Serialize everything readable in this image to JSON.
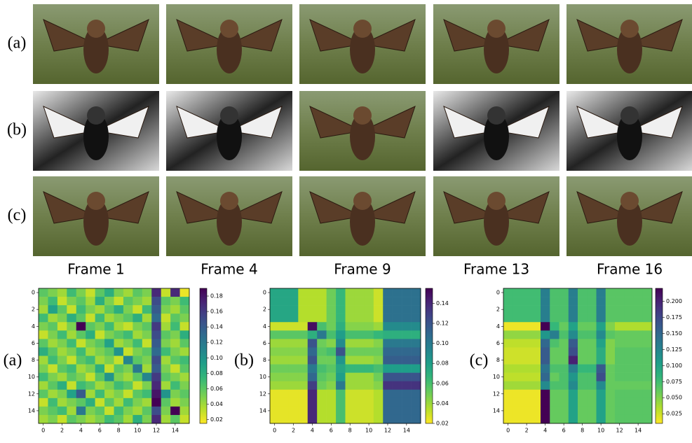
{
  "image_grid": {
    "row_labels": [
      "(a)",
      "(b)",
      "(c)"
    ],
    "frame_labels": [
      "Frame 1",
      "Frame 4",
      "Frame 9",
      "Frame 13",
      "Frame 16"
    ]
  },
  "chart_data": [
    {
      "type": "heatmap",
      "label": "(a)",
      "colormap": "viridis_r",
      "xlim": [
        -0.5,
        15.5
      ],
      "ylim": [
        15.5,
        -0.5
      ],
      "xticks": [
        0,
        2,
        4,
        6,
        8,
        10,
        12,
        14
      ],
      "yticks": [
        0,
        2,
        4,
        6,
        8,
        10,
        12,
        14
      ],
      "clim": [
        0.015,
        0.19
      ],
      "cticks": [
        0.02,
        0.04,
        0.06,
        0.08,
        {
          "value": 0.1,
          "label": "0.10"
        },
        0.12,
        0.14,
        0.16,
        0.18
      ],
      "values": [
        [
          0.06,
          0.05,
          0.04,
          0.07,
          0.05,
          0.03,
          0.06,
          0.08,
          0.05,
          0.04,
          0.06,
          0.05,
          0.17,
          0.03,
          0.17,
          0.02
        ],
        [
          0.05,
          0.07,
          0.03,
          0.05,
          0.06,
          0.04,
          0.08,
          0.05,
          0.03,
          0.06,
          0.05,
          0.04,
          0.15,
          0.06,
          0.05,
          0.07
        ],
        [
          0.04,
          0.09,
          0.06,
          0.03,
          0.07,
          0.05,
          0.04,
          0.06,
          0.08,
          0.05,
          0.03,
          0.07,
          0.14,
          0.05,
          0.04,
          0.06
        ],
        [
          0.07,
          0.04,
          0.05,
          0.08,
          0.06,
          0.03,
          0.07,
          0.04,
          0.05,
          0.06,
          0.08,
          0.04,
          0.13,
          0.03,
          0.06,
          0.05
        ],
        [
          0.05,
          0.06,
          0.03,
          0.05,
          0.19,
          0.06,
          0.05,
          0.07,
          0.04,
          0.03,
          0.05,
          0.06,
          0.16,
          0.04,
          0.07,
          0.03
        ],
        [
          0.03,
          0.05,
          0.07,
          0.04,
          0.06,
          0.08,
          0.03,
          0.05,
          0.06,
          0.07,
          0.04,
          0.05,
          0.15,
          0.06,
          0.05,
          0.08
        ],
        [
          0.06,
          0.04,
          0.05,
          0.07,
          0.03,
          0.05,
          0.06,
          0.09,
          0.04,
          0.05,
          0.07,
          0.03,
          0.14,
          0.05,
          0.04,
          0.06
        ],
        [
          0.08,
          0.06,
          0.04,
          0.05,
          0.07,
          0.04,
          0.05,
          0.06,
          0.1,
          0.03,
          0.05,
          0.06,
          0.13,
          0.07,
          0.05,
          0.04
        ],
        [
          0.04,
          0.07,
          0.05,
          0.03,
          0.06,
          0.07,
          0.04,
          0.05,
          0.03,
          0.11,
          0.06,
          0.05,
          0.15,
          0.04,
          0.06,
          0.07
        ],
        [
          0.05,
          0.03,
          0.06,
          0.07,
          0.04,
          0.05,
          0.08,
          0.03,
          0.06,
          0.05,
          0.12,
          0.04,
          0.14,
          0.05,
          0.03,
          0.06
        ],
        [
          0.07,
          0.05,
          0.04,
          0.06,
          0.05,
          0.03,
          0.06,
          0.1,
          0.05,
          0.04,
          0.06,
          0.11,
          0.16,
          0.06,
          0.05,
          0.04
        ],
        [
          0.04,
          0.06,
          0.08,
          0.03,
          0.07,
          0.06,
          0.04,
          0.05,
          0.07,
          0.06,
          0.03,
          0.05,
          0.17,
          0.04,
          0.07,
          0.05
        ],
        [
          0.06,
          0.04,
          0.05,
          0.09,
          0.14,
          0.04,
          0.07,
          0.04,
          0.05,
          0.03,
          0.06,
          0.07,
          0.18,
          0.1,
          0.05,
          0.06
        ],
        [
          0.03,
          0.07,
          0.04,
          0.05,
          0.06,
          0.08,
          0.03,
          0.06,
          0.04,
          0.07,
          0.05,
          0.04,
          0.19,
          0.06,
          0.04,
          0.05
        ],
        [
          0.05,
          0.06,
          0.07,
          0.04,
          0.12,
          0.05,
          0.06,
          0.03,
          0.07,
          0.05,
          0.04,
          0.06,
          0.15,
          0.05,
          0.19,
          0.04
        ],
        [
          0.04,
          0.05,
          0.03,
          0.06,
          0.05,
          0.04,
          0.05,
          0.07,
          0.06,
          0.04,
          0.08,
          0.05,
          0.17,
          0.04,
          0.06,
          0.03
        ]
      ]
    },
    {
      "type": "heatmap",
      "label": "(b)",
      "colormap": "viridis_r",
      "xlim": [
        -0.5,
        15.5
      ],
      "ylim": [
        15.5,
        -0.5
      ],
      "xticks": [
        0,
        2,
        4,
        6,
        8,
        10,
        12,
        14
      ],
      "yticks": [
        0,
        2,
        4,
        6,
        8,
        10,
        12,
        14
      ],
      "clim": [
        0.02,
        0.155
      ],
      "cticks": [
        0.02,
        0.04,
        0.06,
        0.08,
        {
          "value": 0.1,
          "label": "0.10"
        },
        0.12,
        0.14
      ],
      "values": [
        [
          0.075,
          0.075,
          0.075,
          0.035,
          0.035,
          0.035,
          0.05,
          0.065,
          0.04,
          0.04,
          0.04,
          0.03,
          0.105,
          0.105,
          0.105,
          0.105
        ],
        [
          0.075,
          0.075,
          0.075,
          0.035,
          0.035,
          0.035,
          0.05,
          0.065,
          0.04,
          0.04,
          0.04,
          0.03,
          0.105,
          0.105,
          0.105,
          0.105
        ],
        [
          0.075,
          0.075,
          0.075,
          0.035,
          0.035,
          0.035,
          0.05,
          0.065,
          0.04,
          0.04,
          0.04,
          0.03,
          0.105,
          0.105,
          0.105,
          0.105
        ],
        [
          0.075,
          0.075,
          0.075,
          0.035,
          0.035,
          0.035,
          0.05,
          0.065,
          0.04,
          0.04,
          0.04,
          0.03,
          0.105,
          0.105,
          0.105,
          0.105
        ],
        [
          0.03,
          0.03,
          0.03,
          0.03,
          0.15,
          0.06,
          0.05,
          0.07,
          0.045,
          0.045,
          0.045,
          0.04,
          0.09,
          0.09,
          0.09,
          0.09
        ],
        [
          0.055,
          0.055,
          0.055,
          0.055,
          0.07,
          0.1,
          0.06,
          0.08,
          0.06,
          0.06,
          0.06,
          0.065,
          0.07,
          0.07,
          0.07,
          0.07
        ],
        [
          0.04,
          0.04,
          0.04,
          0.04,
          0.12,
          0.05,
          0.045,
          0.09,
          0.04,
          0.04,
          0.04,
          0.045,
          0.1,
          0.1,
          0.1,
          0.1
        ],
        [
          0.045,
          0.045,
          0.045,
          0.045,
          0.11,
          0.055,
          0.06,
          0.12,
          0.05,
          0.05,
          0.05,
          0.05,
          0.11,
          0.11,
          0.11,
          0.11
        ],
        [
          0.04,
          0.04,
          0.04,
          0.04,
          0.12,
          0.05,
          0.05,
          0.085,
          0.04,
          0.04,
          0.04,
          0.045,
          0.115,
          0.115,
          0.115,
          0.115
        ],
        [
          0.05,
          0.05,
          0.05,
          0.05,
          0.1,
          0.06,
          0.055,
          0.075,
          0.065,
          0.065,
          0.065,
          0.06,
          0.08,
          0.08,
          0.08,
          0.08
        ],
        [
          0.045,
          0.045,
          0.045,
          0.045,
          0.11,
          0.055,
          0.05,
          0.08,
          0.04,
          0.04,
          0.04,
          0.05,
          0.12,
          0.12,
          0.12,
          0.12
        ],
        [
          0.04,
          0.04,
          0.04,
          0.04,
          0.13,
          0.05,
          0.045,
          0.1,
          0.04,
          0.04,
          0.04,
          0.045,
          0.135,
          0.135,
          0.135,
          0.135
        ],
        [
          0.025,
          0.025,
          0.025,
          0.025,
          0.14,
          0.035,
          0.035,
          0.06,
          0.03,
          0.03,
          0.03,
          0.035,
          0.11,
          0.11,
          0.11,
          0.11
        ],
        [
          0.025,
          0.025,
          0.025,
          0.025,
          0.14,
          0.035,
          0.035,
          0.06,
          0.03,
          0.03,
          0.03,
          0.035,
          0.11,
          0.11,
          0.11,
          0.11
        ],
        [
          0.025,
          0.025,
          0.025,
          0.025,
          0.14,
          0.035,
          0.035,
          0.06,
          0.03,
          0.03,
          0.03,
          0.035,
          0.11,
          0.11,
          0.11,
          0.11
        ],
        [
          0.025,
          0.025,
          0.025,
          0.025,
          0.14,
          0.035,
          0.035,
          0.06,
          0.03,
          0.03,
          0.03,
          0.035,
          0.11,
          0.11,
          0.11,
          0.11
        ]
      ]
    },
    {
      "type": "heatmap",
      "label": "(c)",
      "colormap": "viridis_r",
      "xlim": [
        -0.5,
        15.5
      ],
      "ylim": [
        15.5,
        -0.5
      ],
      "xticks": [
        0,
        2,
        4,
        6,
        8,
        10,
        12,
        14
      ],
      "yticks": [
        0,
        2,
        4,
        6,
        8,
        10,
        12,
        14
      ],
      "clim": [
        0.01,
        0.22
      ],
      "cticks": [
        0.025,
        {
          "value": 0.05,
          "label": "0.050"
        },
        0.075,
        {
          "value": 0.1,
          "label": "0.100"
        },
        0.125,
        {
          "value": 0.15,
          "label": "0.150"
        },
        0.175,
        {
          "value": 0.2,
          "label": "0.200"
        }
      ],
      "values": [
        [
          0.075,
          0.075,
          0.075,
          0.075,
          0.13,
          0.07,
          0.07,
          0.13,
          0.07,
          0.07,
          0.13,
          0.065,
          0.065,
          0.065,
          0.065,
          0.065
        ],
        [
          0.075,
          0.075,
          0.075,
          0.075,
          0.13,
          0.07,
          0.07,
          0.13,
          0.07,
          0.07,
          0.13,
          0.065,
          0.065,
          0.065,
          0.065,
          0.065
        ],
        [
          0.075,
          0.075,
          0.075,
          0.075,
          0.13,
          0.07,
          0.07,
          0.13,
          0.07,
          0.07,
          0.13,
          0.065,
          0.065,
          0.065,
          0.065,
          0.065
        ],
        [
          0.075,
          0.075,
          0.075,
          0.075,
          0.13,
          0.07,
          0.07,
          0.13,
          0.07,
          0.07,
          0.13,
          0.065,
          0.065,
          0.065,
          0.065,
          0.065
        ],
        [
          0.015,
          0.015,
          0.015,
          0.015,
          0.22,
          0.08,
          0.06,
          0.1,
          0.06,
          0.06,
          0.1,
          0.05,
          0.035,
          0.035,
          0.035,
          0.035
        ],
        [
          0.045,
          0.045,
          0.045,
          0.045,
          0.11,
          0.13,
          0.07,
          0.12,
          0.07,
          0.07,
          0.12,
          0.065,
          0.06,
          0.06,
          0.06,
          0.06
        ],
        [
          0.03,
          0.03,
          0.03,
          0.03,
          0.15,
          0.07,
          0.06,
          0.16,
          0.06,
          0.06,
          0.1,
          0.05,
          0.06,
          0.06,
          0.06,
          0.06
        ],
        [
          0.025,
          0.025,
          0.025,
          0.025,
          0.16,
          0.06,
          0.06,
          0.17,
          0.06,
          0.06,
          0.09,
          0.05,
          0.065,
          0.065,
          0.065,
          0.065
        ],
        [
          0.025,
          0.025,
          0.025,
          0.025,
          0.16,
          0.06,
          0.06,
          0.2,
          0.06,
          0.06,
          0.09,
          0.05,
          0.065,
          0.065,
          0.065,
          0.065
        ],
        [
          0.035,
          0.035,
          0.035,
          0.035,
          0.14,
          0.07,
          0.07,
          0.13,
          0.08,
          0.08,
          0.16,
          0.06,
          0.065,
          0.065,
          0.065,
          0.065
        ],
        [
          0.03,
          0.03,
          0.03,
          0.03,
          0.15,
          0.06,
          0.07,
          0.11,
          0.07,
          0.07,
          0.17,
          0.06,
          0.065,
          0.065,
          0.065,
          0.065
        ],
        [
          0.04,
          0.04,
          0.04,
          0.04,
          0.12,
          0.07,
          0.07,
          0.12,
          0.07,
          0.07,
          0.12,
          0.06,
          0.06,
          0.06,
          0.06,
          0.06
        ],
        [
          0.015,
          0.015,
          0.015,
          0.015,
          0.22,
          0.06,
          0.06,
          0.1,
          0.06,
          0.06,
          0.1,
          0.06,
          0.065,
          0.065,
          0.065,
          0.065
        ],
        [
          0.015,
          0.015,
          0.015,
          0.015,
          0.22,
          0.06,
          0.06,
          0.1,
          0.06,
          0.06,
          0.1,
          0.06,
          0.065,
          0.065,
          0.065,
          0.065
        ],
        [
          0.015,
          0.015,
          0.015,
          0.015,
          0.22,
          0.06,
          0.06,
          0.1,
          0.06,
          0.06,
          0.1,
          0.06,
          0.065,
          0.065,
          0.065,
          0.065
        ],
        [
          0.015,
          0.015,
          0.015,
          0.015,
          0.22,
          0.06,
          0.06,
          0.1,
          0.06,
          0.06,
          0.1,
          0.06,
          0.065,
          0.065,
          0.065,
          0.065
        ]
      ]
    }
  ]
}
